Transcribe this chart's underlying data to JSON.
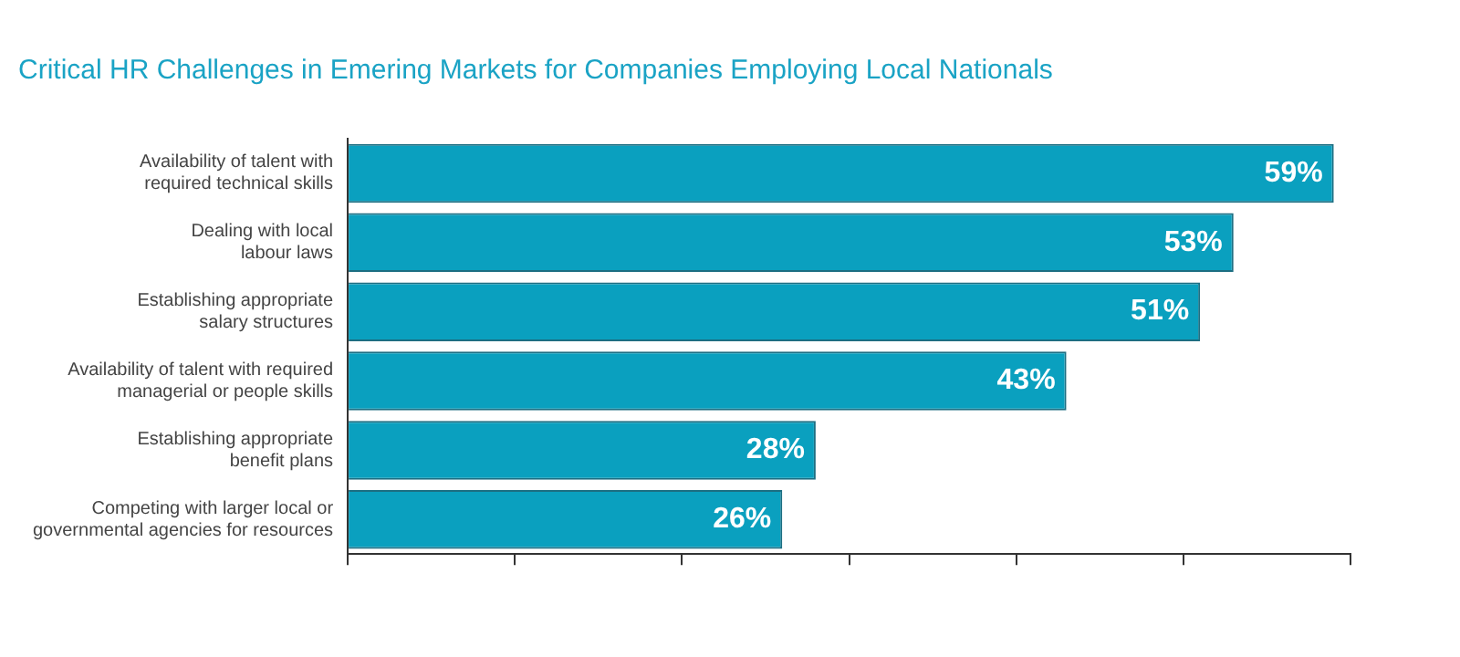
{
  "chart_data": {
    "type": "bar",
    "orientation": "horizontal",
    "title": "Critical HR Challenges in Emering Markets for Companies Employing Local Nationals",
    "categories": [
      "Availability of talent with\nrequired technical skills",
      "Dealing with local\nlabour laws",
      "Establishing appropriate\nsalary structures",
      "Availability of talent with required\nmanagerial or people skills",
      "Establishing appropriate\nbenefit plans",
      "Competing with larger local or\ngovernmental agencies for resources"
    ],
    "values": [
      59,
      53,
      51,
      43,
      28,
      26
    ],
    "value_labels": [
      "59%",
      "53%",
      "51%",
      "43%",
      "28%",
      "26%"
    ],
    "color": "#0aa0bf",
    "xlim": [
      0,
      60
    ],
    "xticks": [
      {
        "value": 0,
        "label": null
      },
      {
        "value": 10,
        "label": null
      },
      {
        "value": 20,
        "label": null
      },
      {
        "value": 30,
        "label": null
      },
      {
        "value": 40,
        "label": null
      },
      {
        "value": 50,
        "label": null
      },
      {
        "value": 60,
        "label": null
      }
    ],
    "tick_labels": "y",
    "grid": false,
    "legend": false
  }
}
